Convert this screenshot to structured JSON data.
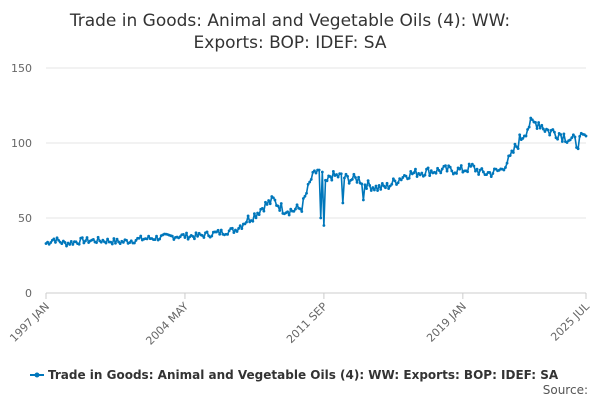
{
  "chart_data": {
    "type": "line",
    "title": "Trade in Goods: Animal and Vegetable Oils (4): WW: Exports: BOP: IDEF: SA",
    "title_lines": [
      "Trade in Goods: Animal and Vegetable Oils (4): WW:",
      "Exports: BOP: IDEF: SA"
    ],
    "xlabel": "",
    "ylabel": "",
    "ylim": [
      0,
      150
    ],
    "y_ticks": [
      0,
      50,
      100,
      150
    ],
    "x_tick_labels": [
      "1997 JAN",
      "2004 MAY",
      "2011 SEP",
      "2019 JAN",
      "2025 JUL"
    ],
    "x_tick_index": [
      0,
      88,
      176,
      264,
      342
    ],
    "x_start": "1997 JAN",
    "x_end": "2025 JUL",
    "frequency": "monthly",
    "color": "#0077bb",
    "legend": "Trade in Goods: Animal and Vegetable Oils (4): WW: Exports: BOP: IDEF: SA",
    "source_label": "Source:",
    "anchors": [
      [
        0,
        33
      ],
      [
        5,
        36
      ],
      [
        12,
        33
      ],
      [
        24,
        35
      ],
      [
        36,
        35
      ],
      [
        48,
        34
      ],
      [
        60,
        36
      ],
      [
        72,
        37
      ],
      [
        84,
        38
      ],
      [
        96,
        38
      ],
      [
        108,
        40
      ],
      [
        120,
        42
      ],
      [
        126,
        48
      ],
      [
        132,
        52
      ],
      [
        138,
        58
      ],
      [
        144,
        62
      ],
      [
        150,
        56
      ],
      [
        156,
        55
      ],
      [
        162,
        57
      ],
      [
        168,
        76
      ],
      [
        172,
        82
      ],
      [
        175,
        78
      ],
      [
        177,
        72
      ],
      [
        180,
        78
      ],
      [
        186,
        78
      ],
      [
        192,
        76
      ],
      [
        198,
        76
      ],
      [
        204,
        72
      ],
      [
        210,
        70
      ],
      [
        216,
        71
      ],
      [
        222,
        75
      ],
      [
        228,
        79
      ],
      [
        234,
        80
      ],
      [
        240,
        81
      ],
      [
        252,
        82
      ],
      [
        264,
        82
      ],
      [
        270,
        84
      ],
      [
        276,
        80
      ],
      [
        282,
        80
      ],
      [
        288,
        82
      ],
      [
        294,
        90
      ],
      [
        300,
        102
      ],
      [
        306,
        112
      ],
      [
        312,
        114
      ],
      [
        318,
        108
      ],
      [
        324,
        107
      ],
      [
        330,
        104
      ],
      [
        336,
        100
      ],
      [
        342,
        104
      ]
    ],
    "outliers": [
      [
        176,
        45
      ],
      [
        174,
        50
      ],
      [
        188,
        60
      ],
      [
        201,
        62
      ]
    ]
  }
}
